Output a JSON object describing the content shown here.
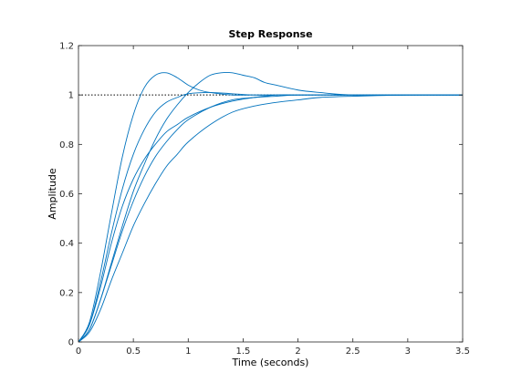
{
  "chart_data": {
    "type": "line",
    "title": "Step Response",
    "xlabel": "Time (seconds)",
    "ylabel": "Amplitude",
    "xlim": [
      0,
      3.5
    ],
    "ylim": [
      0,
      1.2
    ],
    "xticks": [
      "0",
      "0.5",
      "1",
      "1.5",
      "2",
      "2.5",
      "3",
      "3.5"
    ],
    "yticks": [
      "0",
      "0.2",
      "0.4",
      "0.6",
      "0.8",
      "1",
      "1.2"
    ],
    "grid": false,
    "reference_line": {
      "y": 1,
      "style": "dotted",
      "color": "#000000"
    },
    "line_color": "#0072bd",
    "series": [
      {
        "x": [
          0,
          0.1,
          0.2,
          0.3,
          0.4,
          0.5,
          0.6,
          0.7,
          0.8,
          0.9,
          1.0,
          1.1,
          1.2,
          1.4,
          1.6,
          1.8,
          2.0,
          2.5,
          3.0,
          3.5
        ],
        "values": [
          0,
          0.08,
          0.28,
          0.52,
          0.75,
          0.92,
          1.03,
          1.08,
          1.09,
          1.07,
          1.04,
          1.02,
          1.01,
          1.0,
          1.0,
          1.0,
          1.0,
          1.0,
          1.0,
          1.0
        ]
      },
      {
        "x": [
          0,
          0.1,
          0.2,
          0.3,
          0.4,
          0.5,
          0.6,
          0.7,
          0.8,
          0.9,
          1.0,
          1.1,
          1.2,
          1.3,
          1.4,
          1.5,
          1.6,
          1.7,
          1.8,
          2.0,
          2.2,
          2.5,
          3.0,
          3.5
        ],
        "values": [
          0,
          0.05,
          0.17,
          0.32,
          0.47,
          0.61,
          0.72,
          0.82,
          0.9,
          0.96,
          1.01,
          1.05,
          1.08,
          1.09,
          1.09,
          1.08,
          1.07,
          1.05,
          1.04,
          1.02,
          1.01,
          1.0,
          1.0,
          1.0
        ]
      },
      {
        "x": [
          0,
          0.1,
          0.2,
          0.3,
          0.4,
          0.5,
          0.6,
          0.7,
          0.8,
          0.9,
          1.0,
          1.2,
          1.4,
          1.6,
          1.8,
          2.0,
          2.5,
          3.0,
          3.5
        ],
        "values": [
          0,
          0.07,
          0.24,
          0.44,
          0.62,
          0.76,
          0.86,
          0.93,
          0.97,
          0.99,
          1.005,
          1.01,
          1.005,
          1.0,
          1.0,
          1.0,
          1.0,
          1.0,
          1.0
        ]
      },
      {
        "x": [
          0,
          0.1,
          0.2,
          0.3,
          0.4,
          0.5,
          0.6,
          0.7,
          0.8,
          0.9,
          1.0,
          1.2,
          1.4,
          1.6,
          1.8,
          2.0,
          2.5,
          3.0,
          3.5
        ],
        "values": [
          0,
          0.07,
          0.22,
          0.4,
          0.55,
          0.66,
          0.74,
          0.8,
          0.85,
          0.88,
          0.91,
          0.95,
          0.975,
          0.99,
          0.995,
          1.0,
          1.0,
          1.0,
          1.0
        ]
      },
      {
        "x": [
          0,
          0.1,
          0.2,
          0.3,
          0.4,
          0.5,
          0.6,
          0.7,
          0.8,
          0.9,
          1.0,
          1.2,
          1.4,
          1.6,
          1.8,
          2.0,
          2.2,
          2.5,
          3.0,
          3.5
        ],
        "values": [
          0,
          0.05,
          0.17,
          0.31,
          0.45,
          0.57,
          0.67,
          0.75,
          0.81,
          0.86,
          0.9,
          0.95,
          0.98,
          0.99,
          1.0,
          1.0,
          1.0,
          1.0,
          1.0,
          1.0
        ]
      },
      {
        "x": [
          0,
          0.1,
          0.2,
          0.3,
          0.4,
          0.5,
          0.6,
          0.7,
          0.8,
          0.9,
          1.0,
          1.2,
          1.4,
          1.6,
          1.8,
          2.0,
          2.2,
          2.5,
          3.0,
          3.5
        ],
        "values": [
          0,
          0.04,
          0.13,
          0.25,
          0.36,
          0.47,
          0.56,
          0.64,
          0.71,
          0.76,
          0.81,
          0.88,
          0.93,
          0.955,
          0.97,
          0.98,
          0.99,
          0.995,
          1.0,
          1.0
        ]
      }
    ]
  }
}
